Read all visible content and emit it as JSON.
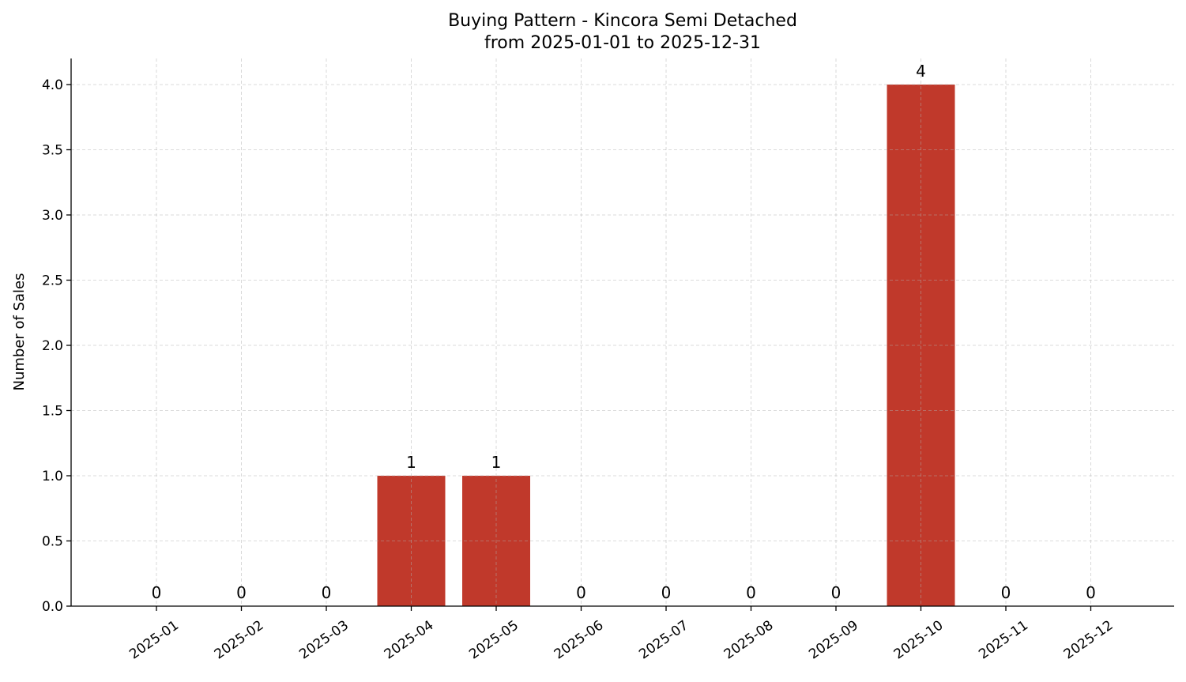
{
  "chart_data": {
    "type": "bar",
    "title": "Buying Pattern - Kincora Semi Detached",
    "subtitle": "from 2025-01-01 to 2025-12-31",
    "xlabel": "",
    "ylabel": "Number of Sales",
    "categories": [
      "2025-01",
      "2025-02",
      "2025-03",
      "2025-04",
      "2025-05",
      "2025-06",
      "2025-07",
      "2025-08",
      "2025-09",
      "2025-10",
      "2025-11",
      "2025-12"
    ],
    "values": [
      0,
      0,
      0,
      1,
      1,
      0,
      0,
      0,
      0,
      4,
      0,
      0
    ],
    "data_labels": [
      "0",
      "0",
      "0",
      "1",
      "1",
      "0",
      "0",
      "0",
      "0",
      "4",
      "0",
      "0"
    ],
    "ylim": [
      0,
      4.2
    ],
    "yticks": [
      "0.0",
      "0.5",
      "1.0",
      "1.5",
      "2.0",
      "2.5",
      "3.0",
      "3.5",
      "4.0"
    ],
    "grid": true,
    "bar_color": "#c0392b"
  }
}
